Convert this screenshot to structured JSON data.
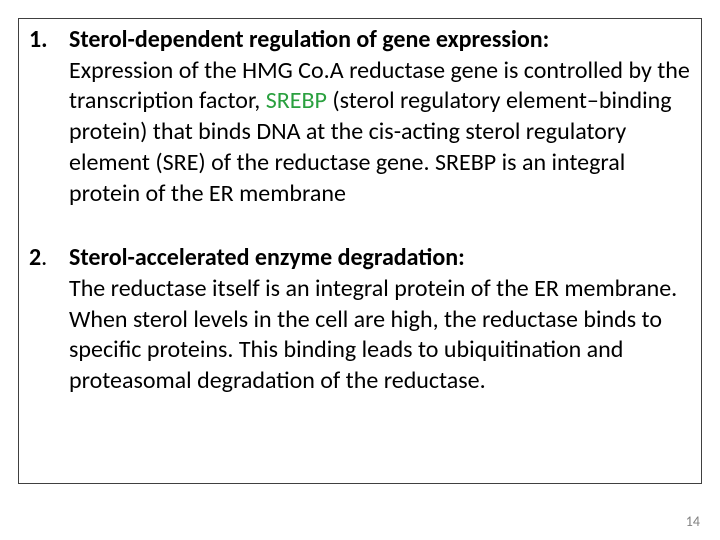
{
  "box_border_color": "#404040",
  "background_color": "#ffffff",
  "srebp_color": "#2aa03f",
  "page_number_color": "#808080",
  "font_family": "Calibri, Arial, sans-serif",
  "heading_fontsize": 24,
  "body_fontsize": 24,
  "item1": {
    "number": "1.",
    "heading": "Sterol-dependent regulation of gene expression:",
    "body_before": "Expression of the HMG Co.A reductase gene is controlled by the transcription factor, ",
    "srebp": "SREBP",
    "body_after": " (sterol regulatory element–binding protein) that binds DNA at the cis-acting sterol regulatory element (SRE) of the reductase gene. SREBP is an integral protein of the ER membrane"
  },
  "item2": {
    "number": "2",
    "number_dot": ".",
    "heading": "Sterol-accelerated enzyme degradation:",
    "body": "The reductase itself is an integral protein of the ER membrane. When sterol levels in the cell are high, the reductase binds to specific proteins. This binding leads to ubiquitination and proteasomal degradation of the reductase."
  },
  "page_number": "14"
}
